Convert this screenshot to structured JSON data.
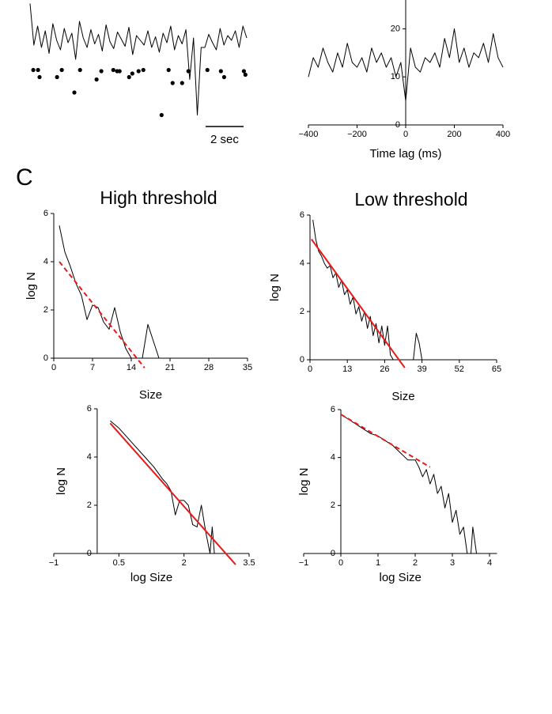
{
  "panel_label": "C",
  "chart_data": [
    {
      "type": "line",
      "xlim": [
        0,
        11.4
      ],
      "ylim": [
        0,
        100
      ],
      "scale_bar": {
        "value": 2,
        "label": "2 sec"
      },
      "series": [
        {
          "color": "#000000",
          "marker": "none",
          "x": [
            0,
            0.2,
            0.4,
            0.6,
            0.8,
            1,
            1.2,
            1.4,
            1.6,
            1.8,
            2,
            2.2,
            2.4,
            2.6,
            2.8,
            3,
            3.2,
            3.4,
            3.6,
            3.8,
            4,
            4.2,
            4.4,
            4.6,
            4.8,
            5,
            5.2,
            5.4,
            5.6,
            5.8,
            6,
            6.2,
            6.4,
            6.6,
            6.8,
            7,
            7.2,
            7.4,
            7.6,
            7.8,
            8,
            8.2,
            8.4,
            8.6,
            8.8,
            9,
            9.2,
            9.4,
            9.6,
            9.8,
            10,
            10.2,
            10.4,
            10.6,
            10.8,
            11,
            11.2,
            11.4
          ],
          "values": [
            97,
            62,
            78,
            60,
            74,
            55,
            80,
            66,
            58,
            76,
            64,
            72,
            50,
            82,
            68,
            60,
            75,
            63,
            71,
            57,
            79,
            65,
            59,
            73,
            67,
            61,
            77,
            54,
            70,
            66,
            62,
            74,
            60,
            69,
            56,
            72,
            64,
            78,
            58,
            70,
            63,
            75,
            33,
            68,
            3,
            60,
            60,
            71,
            64,
            58,
            76,
            62,
            70,
            66,
            74,
            60,
            78,
            68
          ]
        },
        {
          "color": "#000000",
          "marker": "dot",
          "x": [
            0.17,
            0.42,
            0.5,
            1.42,
            1.67,
            2.33,
            2.63,
            3.5,
            3.75,
            4.38,
            4.58,
            4.71,
            5.21,
            5.38,
            5.71,
            5.96,
            6.92,
            7.29,
            7.5,
            8,
            8.33,
            9.33,
            10.04,
            10.21,
            11.25,
            11.33
          ],
          "values": [
            41,
            41,
            35,
            35,
            41,
            22,
            41,
            33,
            40,
            41,
            40,
            40,
            35,
            38,
            40,
            41,
            3,
            41,
            30,
            30,
            40,
            41,
            40,
            35,
            40,
            37
          ]
        }
      ]
    },
    {
      "type": "line",
      "xlabel": "Time lag (ms)",
      "xlim": [
        -400,
        400
      ],
      "ylim": [
        0,
        26
      ],
      "xticks": [
        {
          "value": -400,
          "label": "−400"
        },
        {
          "value": -200,
          "label": "−200"
        },
        0,
        200,
        400
      ],
      "yticks": [
        0,
        10,
        20
      ],
      "series": [
        {
          "color": "#000000",
          "marker": "none",
          "x": [
            -400,
            -380,
            -360,
            -340,
            -320,
            -300,
            -280,
            -260,
            -240,
            -220,
            -200,
            -180,
            -160,
            -140,
            -120,
            -100,
            -80,
            -60,
            -40,
            -20,
            0,
            20,
            40,
            60,
            80,
            100,
            120,
            140,
            160,
            180,
            200,
            220,
            240,
            260,
            280,
            300,
            320,
            340,
            360,
            380,
            400
          ],
          "values": [
            10,
            14,
            12,
            16,
            13,
            11,
            15,
            12,
            17,
            13,
            12,
            14,
            11,
            16,
            13,
            15,
            12,
            14,
            10,
            13,
            5,
            16,
            12,
            11,
            14,
            13,
            15,
            12,
            18,
            14,
            20,
            13,
            16,
            12,
            15,
            14,
            17,
            13,
            19,
            14,
            12
          ]
        }
      ]
    },
    {
      "type": "line",
      "title": "High threshold",
      "xlabel": "Size",
      "ylabel": "log N",
      "xlim": [
        0,
        35
      ],
      "ylim": [
        0,
        6
      ],
      "xticks": [
        0,
        7,
        14,
        21,
        28,
        35
      ],
      "yticks": [
        0,
        2,
        4,
        6
      ],
      "series": [
        {
          "color": "#000000",
          "marker": "none",
          "x": [
            1,
            2,
            3,
            4,
            5,
            6,
            7,
            8,
            9,
            10,
            11,
            12,
            13,
            14,
            15,
            16,
            17,
            18,
            19,
            35
          ],
          "values": [
            5.5,
            4.4,
            3.8,
            3.1,
            2.6,
            1.6,
            2.2,
            2.1,
            1.5,
            1.2,
            2.1,
            1.1,
            0.4,
            0,
            0,
            0,
            1.4,
            0.7,
            0,
            0
          ]
        },
        {
          "color": "#e8191a",
          "marker": "none",
          "dashed": true,
          "x": [
            1,
            16.4
          ],
          "values": [
            4.0,
            -0.4
          ]
        }
      ]
    },
    {
      "type": "line",
      "title": "Low threshold",
      "xlabel": "Size",
      "ylabel": "log N",
      "xlim": [
        0,
        65
      ],
      "ylim": [
        0,
        6
      ],
      "xticks": [
        0,
        13,
        26,
        39,
        52,
        65
      ],
      "yticks": [
        0,
        2,
        4,
        6
      ],
      "series": [
        {
          "color": "#000000",
          "marker": "none",
          "x": [
            1,
            2,
            3,
            4,
            5,
            6,
            7,
            8,
            9,
            10,
            11,
            12,
            13,
            14,
            15,
            16,
            17,
            18,
            19,
            20,
            21,
            22,
            23,
            24,
            25,
            26,
            27,
            28,
            29,
            30,
            36,
            37,
            38,
            39,
            65
          ],
          "values": [
            5.8,
            5.0,
            4.5,
            4.3,
            4.0,
            3.8,
            3.9,
            3.4,
            3.6,
            3.0,
            3.3,
            2.7,
            2.9,
            2.3,
            2.6,
            1.9,
            2.2,
            1.6,
            2.0,
            1.3,
            1.8,
            1.0,
            1.5,
            0.7,
            1.4,
            0.6,
            1.4,
            0.2,
            0,
            0,
            0,
            1.1,
            0.7,
            0,
            0
          ]
        },
        {
          "color": "#e8191a",
          "marker": "none",
          "dashed": false,
          "x": [
            0.5,
            33
          ],
          "values": [
            5.0,
            -0.33
          ]
        }
      ]
    },
    {
      "type": "line",
      "xlabel": "log Size",
      "ylabel": "log N",
      "xlim": [
        -1,
        3.5
      ],
      "ylim": [
        0,
        6
      ],
      "xticks": [
        {
          "value": -1,
          "label": "−1"
        },
        0.5,
        2,
        3.5
      ],
      "yticks": [
        0,
        2,
        4,
        6
      ],
      "series": [
        {
          "color": "#000000",
          "marker": "none",
          "x": [
            0.3,
            0.5,
            0.7,
            0.9,
            1.1,
            1.3,
            1.5,
            1.6,
            1.7,
            1.8,
            1.9,
            2.0,
            2.1,
            2.2,
            2.3,
            2.4,
            2.5,
            2.6,
            2.65,
            2.7,
            3.5
          ],
          "values": [
            5.5,
            5.2,
            4.8,
            4.4,
            4.0,
            3.6,
            3.1,
            2.9,
            2.6,
            1.6,
            2.2,
            2.2,
            2.0,
            1.2,
            1.1,
            2.0,
            0.9,
            0,
            1.1,
            0,
            0
          ]
        },
        {
          "color": "#e8191a",
          "marker": "none",
          "dashed": false,
          "x": [
            0.3,
            3.19
          ],
          "values": [
            5.4,
            -0.46
          ]
        }
      ]
    },
    {
      "type": "line",
      "xlabel": "log Size",
      "ylabel": "log N",
      "xlim": [
        -1,
        4.2
      ],
      "ylim": [
        0,
        6
      ],
      "xticks": [
        {
          "value": -1,
          "label": "−1"
        },
        0,
        1,
        2,
        3,
        4
      ],
      "yticks": [
        0,
        2,
        4,
        6
      ],
      "series": [
        {
          "color": "#000000",
          "marker": "none",
          "x": [
            0,
            0.2,
            0.4,
            0.6,
            0.8,
            1.0,
            1.2,
            1.4,
            1.6,
            1.8,
            2.0,
            2.1,
            2.2,
            2.3,
            2.4,
            2.5,
            2.6,
            2.7,
            2.8,
            2.9,
            3.0,
            3.1,
            3.2,
            3.3,
            3.4,
            3.5,
            3.55,
            3.65,
            3.7,
            4.2
          ],
          "values": [
            5.8,
            5.6,
            5.4,
            5.2,
            5.0,
            4.9,
            4.7,
            4.5,
            4.2,
            3.9,
            3.9,
            3.6,
            3.2,
            3.5,
            2.9,
            3.3,
            2.5,
            2.8,
            1.9,
            2.5,
            1.3,
            1.8,
            0.8,
            1.1,
            0,
            0,
            1.1,
            0,
            0,
            0
          ]
        },
        {
          "color": "#e8191a",
          "marker": "none",
          "dashed": true,
          "x": [
            0,
            2.4
          ],
          "values": [
            5.8,
            3.6
          ]
        }
      ]
    }
  ]
}
